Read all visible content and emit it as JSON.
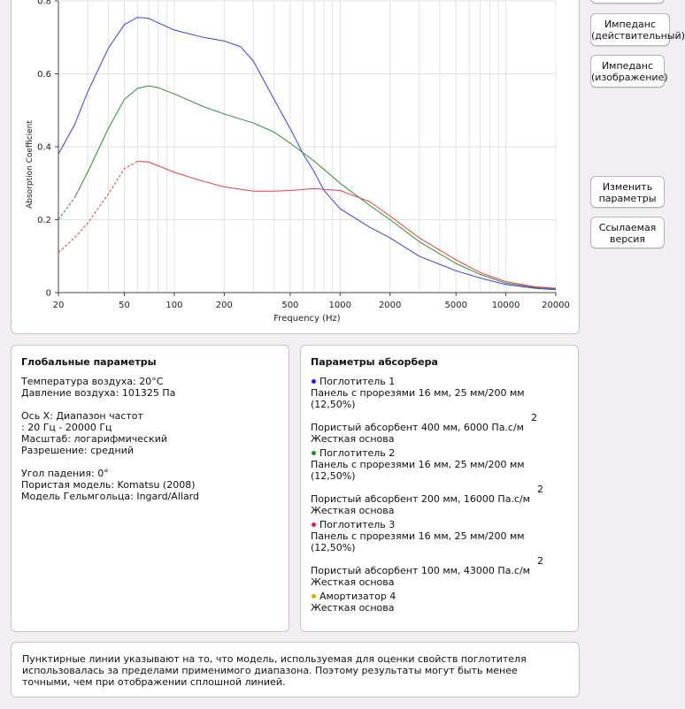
{
  "buttons": {
    "impedance_real": "Импеданс (действительный)",
    "impedance_imag": "Импеданс (изображение)",
    "change_params": "Изменить параметры",
    "linked_version": "Ссылаемая версия"
  },
  "chart_data": {
    "type": "line",
    "xlabel": "Frequency (Hz)",
    "ylabel": "Absorption Coefficient",
    "xscale": "log",
    "xlim": [
      20,
      20000
    ],
    "ylim": [
      0,
      0.8
    ],
    "x_ticks": [
      "20",
      "50",
      "100",
      "200",
      "500",
      "1000",
      "2000",
      "5000",
      "10000",
      "20000"
    ],
    "y_ticks": [
      "0",
      "0.2",
      "0.4",
      "0.6",
      "0.8"
    ],
    "grid": true,
    "series": [
      {
        "color": "#3b3bff",
        "dashed_below": 20,
        "points": [
          [
            20,
            0.38
          ],
          [
            25,
            0.46
          ],
          [
            30,
            0.55
          ],
          [
            40,
            0.67
          ],
          [
            50,
            0.735
          ],
          [
            60,
            0.755
          ],
          [
            70,
            0.752
          ],
          [
            80,
            0.74
          ],
          [
            100,
            0.72
          ],
          [
            150,
            0.7
          ],
          [
            200,
            0.69
          ],
          [
            250,
            0.675
          ],
          [
            300,
            0.635
          ],
          [
            400,
            0.53
          ],
          [
            500,
            0.45
          ],
          [
            600,
            0.38
          ],
          [
            700,
            0.33
          ],
          [
            800,
            0.28
          ],
          [
            1000,
            0.23
          ],
          [
            1500,
            0.18
          ],
          [
            2000,
            0.15
          ],
          [
            3000,
            0.1
          ],
          [
            5000,
            0.06
          ],
          [
            7000,
            0.04
          ],
          [
            10000,
            0.022
          ],
          [
            15000,
            0.012
          ],
          [
            20000,
            0.008
          ]
        ]
      },
      {
        "color": "#2f8f2f",
        "dashed_below": 22,
        "points": [
          [
            20,
            0.2
          ],
          [
            25,
            0.26
          ],
          [
            30,
            0.33
          ],
          [
            40,
            0.45
          ],
          [
            50,
            0.53
          ],
          [
            60,
            0.56
          ],
          [
            70,
            0.567
          ],
          [
            80,
            0.562
          ],
          [
            100,
            0.545
          ],
          [
            150,
            0.51
          ],
          [
            200,
            0.49
          ],
          [
            300,
            0.465
          ],
          [
            400,
            0.44
          ],
          [
            500,
            0.41
          ],
          [
            700,
            0.36
          ],
          [
            1000,
            0.3
          ],
          [
            1500,
            0.24
          ],
          [
            2000,
            0.2
          ],
          [
            3000,
            0.14
          ],
          [
            5000,
            0.08
          ],
          [
            7000,
            0.05
          ],
          [
            10000,
            0.026
          ],
          [
            15000,
            0.014
          ],
          [
            20000,
            0.01
          ]
        ]
      },
      {
        "color": "#ee3a3a",
        "dashed_below": 55,
        "points": [
          [
            20,
            0.11
          ],
          [
            25,
            0.15
          ],
          [
            30,
            0.19
          ],
          [
            40,
            0.27
          ],
          [
            50,
            0.34
          ],
          [
            60,
            0.36
          ],
          [
            70,
            0.358
          ],
          [
            80,
            0.348
          ],
          [
            100,
            0.33
          ],
          [
            150,
            0.305
          ],
          [
            200,
            0.29
          ],
          [
            300,
            0.278
          ],
          [
            400,
            0.278
          ],
          [
            500,
            0.28
          ],
          [
            700,
            0.285
          ],
          [
            1000,
            0.28
          ],
          [
            1500,
            0.25
          ],
          [
            2000,
            0.21
          ],
          [
            3000,
            0.15
          ],
          [
            5000,
            0.09
          ],
          [
            7000,
            0.055
          ],
          [
            10000,
            0.03
          ],
          [
            15000,
            0.016
          ],
          [
            20000,
            0.012
          ]
        ]
      }
    ]
  },
  "global": {
    "title": "Глобальные параметры",
    "temp": "Температура воздуха: 20°C",
    "pressure": "Давление воздуха: 101325 Па",
    "xaxis": "Ось X: Диапазон частот",
    "range": ": 20 Гц - 20000 Гц",
    "scale": "Масштаб: логарифмический",
    "resolution": "Разрешение: средний",
    "angle": "Угол падения: 0°",
    "porous_model": "Пористая модель: Komatsu (2008)",
    "helmholtz_model": "Модель Гельмгольца: Ingard/Allard"
  },
  "absorber": {
    "title": "Параметры абсорбера",
    "items": [
      {
        "name": "Поглотитель 1",
        "color": "#1a1aff",
        "panel1": "Панель с прорезями 16 мм, 25 мм/200 мм",
        "panel2": "(12,50%)",
        "sup": "2",
        "porous": "Пористый абсорбент 400 мм, 6000 Па.с/м",
        "base": "Жесткая основа"
      },
      {
        "name": "Поглотитель 2",
        "color": "#1f8c1f",
        "panel1": "Панель с прорезями 16 мм, 25 мм/200 мм",
        "panel2": "(12,50%)",
        "sup": "2",
        "porous": "Пористый абсорбент 200 мм, 16000 Па.с/м",
        "base": "Жесткая основа"
      },
      {
        "name": "Поглотитель 3",
        "color": "#ee2222",
        "panel1": "Панель с прорезями 16 мм, 25 мм/200 мм",
        "panel2": "(12,50%)",
        "sup": "2",
        "porous": "Пористый абсорбент 100 мм, 43000 Па.с/м",
        "base": "Жесткая основа"
      }
    ],
    "item4": {
      "name": "Амортизатор 4",
      "color": "#f0a000",
      "base": "Жесткая основа"
    }
  },
  "note": "Пунктирные линии указывают на то, что модель, используемая для оценки свойств поглотителя использовалась за пределами применимого диапазона. Поэтому результаты могут быть менее точными, чем при отображении сплошной линией."
}
